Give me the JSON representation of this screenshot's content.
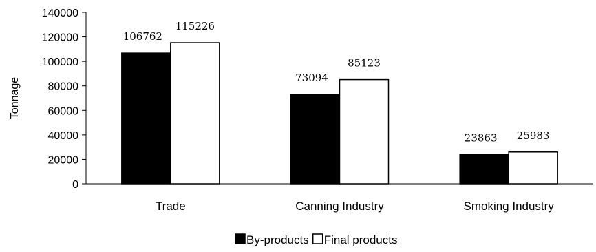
{
  "chart_data": {
    "type": "bar",
    "title": "",
    "xlabel": "",
    "ylabel": "Tonnage",
    "ylim": [
      0,
      140000
    ],
    "ytick_step": 20000,
    "yticks": [
      "0",
      "20000",
      "40000",
      "60000",
      "80000",
      "100000",
      "120000",
      "140000"
    ],
    "grid": false,
    "legend_position": "bottom",
    "categories": [
      "Trade",
      "Canning Industry",
      "Smoking Industry"
    ],
    "series": [
      {
        "name": "By-products",
        "values": [
          106762,
          73094,
          23863
        ],
        "color": "#000000"
      },
      {
        "name": "Final products",
        "values": [
          115226,
          85123,
          25983
        ],
        "color": "#ffffff"
      }
    ]
  }
}
